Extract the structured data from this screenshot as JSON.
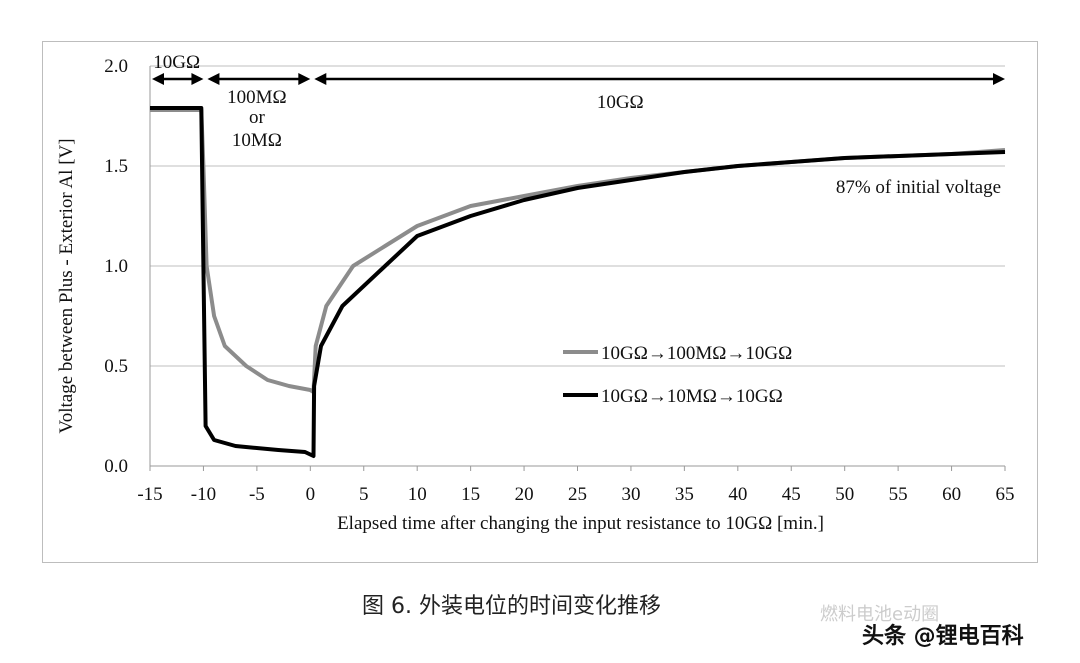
{
  "chart_data": {
    "type": "line",
    "xlabel": "Elapsed time after  changing  the input resistance to 10GΩ [min.]",
    "ylabel": "Voltage between Plus - Exterior Al [V]",
    "xlim": [
      -15,
      65
    ],
    "ylim": [
      0,
      2.0
    ],
    "xticks": [
      -15,
      -10,
      -5,
      0,
      5,
      10,
      15,
      20,
      25,
      30,
      35,
      40,
      45,
      50,
      55,
      60,
      65
    ],
    "yticks": [
      "0.0",
      "0.5",
      "1.0",
      "1.5",
      "2.0"
    ],
    "grid": "horizontal",
    "legend_position": "center-right",
    "series": [
      {
        "name": "10GΩ→100MΩ→10GΩ",
        "color": "#8c8c8c",
        "x": [
          -15,
          -10.2,
          -10,
          -9.7,
          -9,
          -8,
          -6,
          -4,
          -2,
          0,
          0.3,
          0.5,
          1.5,
          4,
          7,
          10,
          15,
          20,
          25,
          30,
          35,
          40,
          45,
          50,
          60,
          65
        ],
        "y": [
          1.78,
          1.78,
          1.5,
          1.0,
          0.75,
          0.6,
          0.5,
          0.43,
          0.4,
          0.38,
          0.37,
          0.6,
          0.8,
          1.0,
          1.1,
          1.2,
          1.3,
          1.35,
          1.4,
          1.44,
          1.47,
          1.5,
          1.52,
          1.54,
          1.56,
          1.58
        ]
      },
      {
        "name": "10GΩ→10MΩ→10GΩ",
        "color": "#000000",
        "x": [
          -15,
          -10.2,
          -10,
          -9.8,
          -9,
          -7,
          -3,
          -0.5,
          0.3,
          0.35,
          1,
          3,
          7,
          10,
          15,
          20,
          25,
          30,
          35,
          40,
          45,
          50,
          60,
          65
        ],
        "y": [
          1.79,
          1.79,
          1.0,
          0.2,
          0.13,
          0.1,
          0.08,
          0.07,
          0.05,
          0.4,
          0.6,
          0.8,
          1.0,
          1.15,
          1.25,
          1.33,
          1.39,
          1.43,
          1.47,
          1.5,
          1.52,
          1.54,
          1.56,
          1.57
        ]
      }
    ],
    "annotations": {
      "phase1": "10GΩ",
      "phase2_line1": "100MΩ",
      "phase2_line2": "or",
      "phase2_line3": "10MΩ",
      "phase3": "10GΩ",
      "note": "87% of initial  voltage"
    }
  },
  "caption": "图 6.  外装电位的时间变化推移",
  "watermark1": "燃料电池e动圈",
  "watermark2": "头条 @锂电百科"
}
